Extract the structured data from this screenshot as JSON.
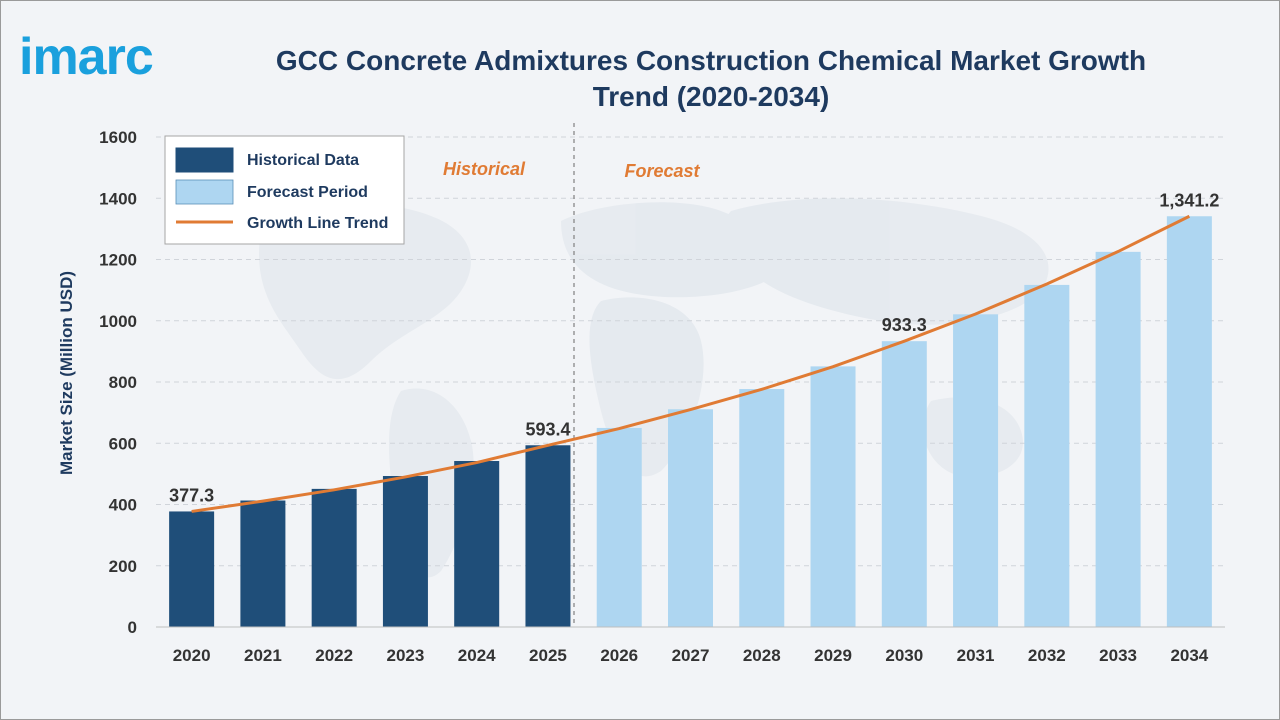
{
  "logo": {
    "text": "imarc"
  },
  "chart_data": {
    "type": "bar",
    "title": "GCC Concrete Admixtures Construction Chemical Market Growth Trend (2020-2034)",
    "ylabel": "Market Size (Million USD)",
    "xlabel": "",
    "ylim": [
      0,
      1600
    ],
    "yticks": [
      0,
      200,
      400,
      600,
      800,
      1000,
      1200,
      1400,
      1600
    ],
    "grid": true,
    "legend_position": "top-left",
    "categories": [
      "2020",
      "2021",
      "2022",
      "2023",
      "2024",
      "2025",
      "2026",
      "2027",
      "2028",
      "2029",
      "2030",
      "2031",
      "2032",
      "2033",
      "2034"
    ],
    "series": [
      {
        "name": "Historical Data",
        "color": "#1f4e79",
        "values": [
          377.3,
          413,
          451,
          493,
          542,
          593.4,
          null,
          null,
          null,
          null,
          null,
          null,
          null,
          null,
          null
        ]
      },
      {
        "name": "Forecast Period",
        "color": "#aed6f1",
        "values": [
          null,
          null,
          null,
          null,
          null,
          null,
          650,
          711,
          777,
          851,
          933.3,
          1021,
          1117,
          1225,
          1341.2
        ]
      },
      {
        "name": "Growth Line Trend",
        "type": "line",
        "color": "#e07b34",
        "values": [
          377.3,
          411,
          448,
          490,
          537,
          593.4,
          648,
          710,
          776,
          850,
          933.3,
          1022,
          1120,
          1226,
          1341.2
        ]
      }
    ],
    "data_labels": [
      {
        "category": "2020",
        "text": "377.3"
      },
      {
        "category": "2025",
        "text": "593.4"
      },
      {
        "category": "2030",
        "text": "933.3"
      },
      {
        "category": "2034",
        "text": "1,341.2"
      }
    ],
    "sections": [
      {
        "label": "Historical"
      },
      {
        "label": "Forecast"
      }
    ]
  }
}
